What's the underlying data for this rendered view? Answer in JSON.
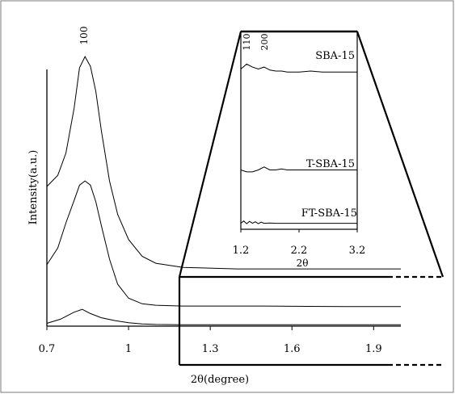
{
  "chart_data": {
    "type": "line",
    "main": {
      "xlabel": "2θ(degree)",
      "ylabel": "Intensity(a.u.)",
      "xlim": [
        0.7,
        2.0
      ],
      "x_ticks": [
        "0.7",
        "1",
        "1.3",
        "1.6",
        "1.9"
      ],
      "peak_label": "100",
      "series": [
        {
          "x": [
            0.7,
            0.74,
            0.77,
            0.8,
            0.82,
            0.84,
            0.86,
            0.88,
            0.9,
            0.93,
            0.96,
            1.0,
            1.05,
            1.1,
            1.2,
            1.4,
            1.6,
            1.8,
            2.0
          ],
          "y": [
            0.5,
            0.54,
            0.62,
            0.78,
            0.925,
            0.965,
            0.93,
            0.84,
            0.7,
            0.52,
            0.4,
            0.31,
            0.25,
            0.225,
            0.21,
            0.205,
            0.205,
            0.205,
            0.205
          ]
        },
        {
          "x": [
            0.7,
            0.74,
            0.77,
            0.8,
            0.82,
            0.84,
            0.86,
            0.88,
            0.9,
            0.93,
            0.96,
            1.0,
            1.05,
            1.1,
            1.2,
            1.5,
            1.8,
            2.0
          ],
          "y": [
            0.22,
            0.28,
            0.37,
            0.45,
            0.505,
            0.52,
            0.505,
            0.445,
            0.36,
            0.24,
            0.15,
            0.1,
            0.08,
            0.075,
            0.072,
            0.072,
            0.07,
            0.07
          ]
        },
        {
          "x": [
            0.7,
            0.75,
            0.8,
            0.83,
            0.86,
            0.9,
            0.95,
            1.0,
            1.05,
            1.1,
            1.2,
            1.5,
            1.8,
            2.0
          ],
          "y": [
            0.01,
            0.025,
            0.05,
            0.06,
            0.045,
            0.03,
            0.02,
            0.012,
            0.008,
            0.006,
            0.005,
            0.005,
            0.005,
            0.005
          ]
        }
      ]
    },
    "inset": {
      "xlabel": "2θ",
      "xlim": [
        1.2,
        3.2
      ],
      "x_ticks": [
        "1.2",
        "2.2",
        "3.2"
      ],
      "peak_labels": [
        {
          "text": "110",
          "x": 1.3
        },
        {
          "text": "200",
          "x": 1.6
        }
      ],
      "series": [
        {
          "name": "SBA-15",
          "x": [
            1.2,
            1.3,
            1.4,
            1.5,
            1.6,
            1.7,
            1.8,
            1.9,
            2.0,
            2.2,
            2.4,
            2.6,
            2.8,
            3.0,
            3.2
          ],
          "y": [
            0.81,
            0.835,
            0.82,
            0.81,
            0.82,
            0.805,
            0.8,
            0.8,
            0.795,
            0.795,
            0.8,
            0.795,
            0.795,
            0.795,
            0.795
          ]
        },
        {
          "name": "T-SBA-15",
          "x": [
            1.2,
            1.3,
            1.4,
            1.5,
            1.6,
            1.7,
            1.8,
            1.9,
            2.0,
            2.2,
            2.4,
            2.6,
            2.8,
            3.0,
            3.2
          ],
          "y": [
            0.3,
            0.29,
            0.29,
            0.3,
            0.315,
            0.3,
            0.3,
            0.305,
            0.3,
            0.3,
            0.3,
            0.3,
            0.3,
            0.3,
            0.3
          ]
        },
        {
          "name": "FT-SBA-15",
          "x": [
            1.2,
            1.25,
            1.3,
            1.35,
            1.4,
            1.45,
            1.5,
            1.55,
            1.6,
            1.7,
            1.8,
            2.0,
            2.2,
            2.6,
            3.0,
            3.2
          ],
          "y": [
            0.03,
            0.042,
            0.028,
            0.04,
            0.03,
            0.038,
            0.028,
            0.036,
            0.03,
            0.032,
            0.03,
            0.03,
            0.03,
            0.03,
            0.03,
            0.03
          ]
        }
      ]
    }
  }
}
